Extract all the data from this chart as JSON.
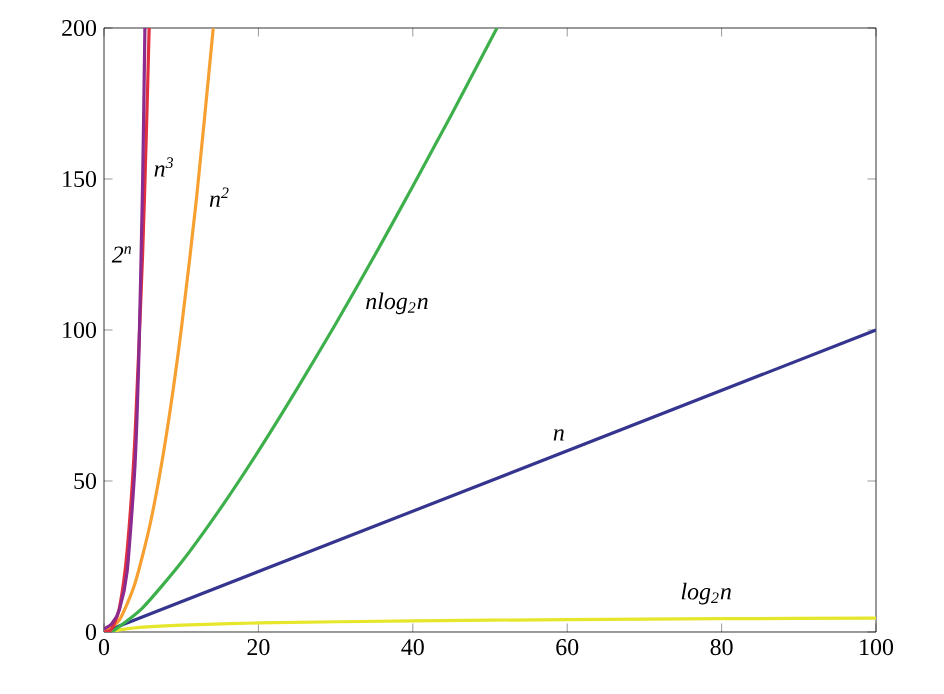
{
  "chart_data": {
    "type": "line",
    "series": [
      {
        "name": "log$_{2}$n",
        "color": "#e6e62a",
        "x": [
          1,
          2,
          5,
          10,
          20,
          40,
          60,
          80,
          100
        ],
        "values": [
          0,
          0.7,
          1.6,
          2.3,
          3.0,
          3.7,
          4.1,
          4.4,
          4.6
        ]
      },
      {
        "name": "n",
        "color": "#35358f",
        "x": [
          0,
          100
        ],
        "values": [
          0,
          100
        ]
      },
      {
        "name": "nlog$_{2}$n",
        "color": "#3db04b",
        "x": [
          1,
          5,
          10,
          15,
          20,
          25,
          30,
          35,
          40,
          45,
          50,
          50.9
        ],
        "values": [
          0,
          8,
          23,
          40.6,
          59.9,
          80.5,
          102,
          124.4,
          147.6,
          171.3,
          195.6,
          200
        ]
      },
      {
        "name": "n$^{2}$",
        "color": "#f5a030",
        "x": [
          0,
          2,
          4,
          6,
          8,
          10,
          12,
          14,
          14.14
        ],
        "values": [
          0,
          4,
          16,
          36,
          64,
          100,
          144,
          196,
          200
        ]
      },
      {
        "name": "n$^{3}$",
        "color": "#e03040",
        "x": [
          0,
          1,
          2,
          3,
          4,
          5,
          5.5,
          5.85
        ],
        "values": [
          0,
          1,
          8,
          27,
          64,
          125,
          166.4,
          200
        ]
      },
      {
        "name": "2$^{n}$",
        "color": "#8b2a8f",
        "x": [
          0,
          1,
          2,
          3,
          4,
          4.5,
          5,
          5.3
        ],
        "values": [
          1,
          2.7,
          7.4,
          20.1,
          54.6,
          90,
          148.4,
          200
        ]
      }
    ],
    "xlim": [
      0,
      100
    ],
    "ylim": [
      0,
      200
    ],
    "xticks": [
      0,
      20,
      40,
      60,
      80,
      100
    ],
    "yticks": [
      0,
      50,
      100,
      150,
      200
    ],
    "grid": false,
    "legend": false,
    "marker": "none",
    "line_style": "solid"
  }
}
